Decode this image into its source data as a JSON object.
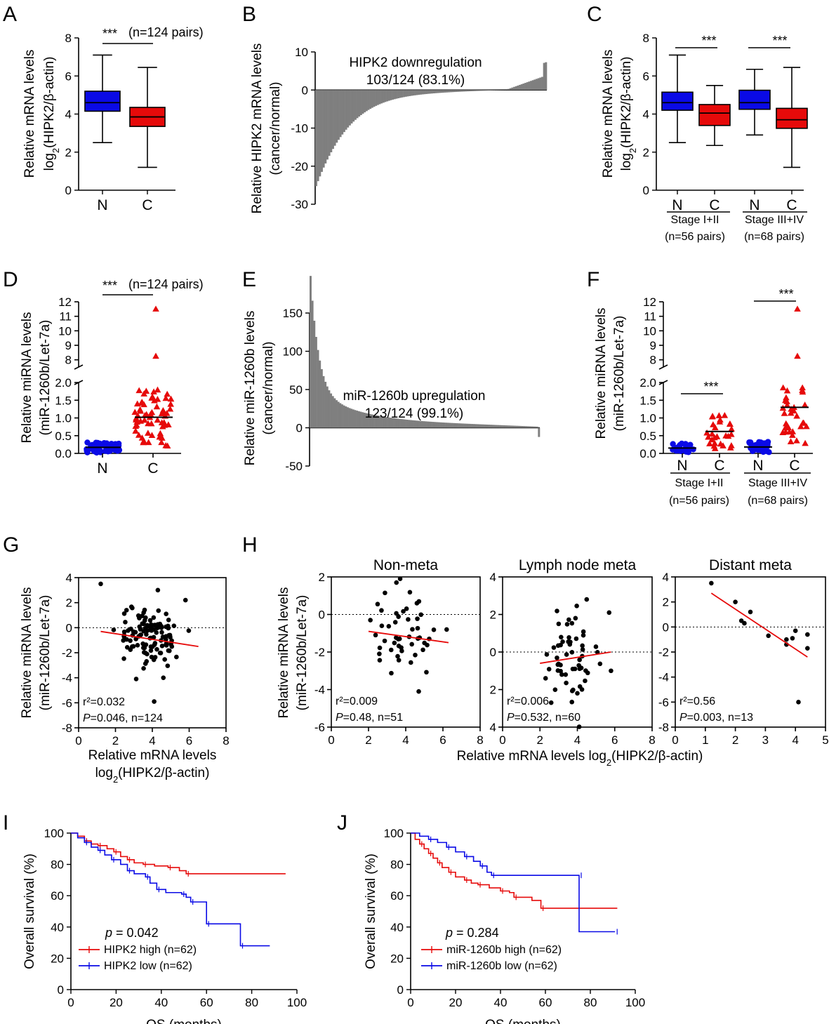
{
  "panels": {
    "A": "A",
    "B": "B",
    "C": "C",
    "D": "D",
    "E": "E",
    "F": "F",
    "G": "G",
    "H": "H",
    "I": "I",
    "J": "J"
  },
  "colors": {
    "blue": "#0a0ae6",
    "red": "#e60a0a",
    "gray": "#7f7f7f",
    "black": "#000000"
  },
  "chart_data": [
    {
      "id": "A",
      "type": "box",
      "ylabel": "Relative mRNA levels",
      "ylabel2_pre": "log",
      "ylabel2_sub": "2",
      "ylabel2_post": "(HIPK2/β-actin)",
      "ylim": [
        0,
        8
      ],
      "yticks": [
        "0",
        "2",
        "4",
        "6",
        "8"
      ],
      "categories": [
        "N",
        "C"
      ],
      "sig": "***",
      "sig_note": "(n=124 pairs)",
      "boxes": [
        {
          "cat": "N",
          "min": 2.5,
          "q1": 4.15,
          "median": 4.6,
          "q3": 5.2,
          "max": 7.1,
          "color": "#0a0ae6"
        },
        {
          "cat": "C",
          "min": 1.2,
          "q1": 3.35,
          "median": 3.85,
          "q3": 4.35,
          "max": 6.45,
          "color": "#e60a0a"
        }
      ]
    },
    {
      "id": "B",
      "type": "bar",
      "ylabel": "Relative HIPK2 mRNA levels",
      "ylabel2": "(cancer/normal)",
      "ylim": [
        -30,
        10
      ],
      "yticks": [
        "10",
        "0",
        "-10",
        "-20",
        "-30"
      ],
      "annotation": "HIPK2 downregulation",
      "annotation2": "103/124 (83.1%)",
      "n": 124,
      "down": 103
    },
    {
      "id": "C",
      "type": "box",
      "ylabel": "Relative mRNA levels",
      "ylabel2_pre": "log",
      "ylabel2_sub": "2",
      "ylabel2_post": "(HIPK2/β-actin)",
      "ylim": [
        0,
        8
      ],
      "yticks": [
        "0",
        "2",
        "4",
        "6",
        "8"
      ],
      "categories": [
        "N",
        "C",
        "N",
        "C"
      ],
      "groups": [
        {
          "label": "Stage I+II",
          "n": "(n=56 pairs)",
          "sig": "***"
        },
        {
          "label": "Stage III+IV",
          "n": "(n=68 pairs)",
          "sig": "***"
        }
      ],
      "boxes": [
        {
          "min": 2.5,
          "q1": 4.2,
          "median": 4.6,
          "q3": 5.15,
          "max": 7.1,
          "color": "#0a0ae6"
        },
        {
          "min": 2.35,
          "q1": 3.4,
          "median": 4.05,
          "q3": 4.5,
          "max": 5.5,
          "color": "#e60a0a"
        },
        {
          "min": 2.9,
          "q1": 4.25,
          "median": 4.6,
          "q3": 5.25,
          "max": 6.35,
          "color": "#0a0ae6"
        },
        {
          "min": 1.2,
          "q1": 3.25,
          "median": 3.7,
          "q3": 4.3,
          "max": 6.45,
          "color": "#e60a0a"
        }
      ]
    },
    {
      "id": "D",
      "type": "scatter-dot",
      "ylabel": "Relative miRNA levels",
      "ylabel2": "(miR-1260b/Let-7a)",
      "ylim_low": [
        0,
        2
      ],
      "ylim_high": [
        7.5,
        12
      ],
      "yticks_low": [
        "0.0",
        "0.5",
        "1.0",
        "1.5",
        "2.0"
      ],
      "yticks_high": [
        "8",
        "9",
        "10",
        "11",
        "12"
      ],
      "categories": [
        "N",
        "C"
      ],
      "sig": "***",
      "sig_note": "(n=124 pairs)",
      "means": [
        0.17,
        1.02
      ]
    },
    {
      "id": "E",
      "type": "bar",
      "ylabel": "Relative miR-1260b levels",
      "ylabel2": "(cancer/normal)",
      "ylim": [
        -50,
        150
      ],
      "yticks": [
        "150",
        "100",
        "50",
        "0",
        "-50"
      ],
      "annotation": "miR-1260b upregulation",
      "annotation2": "123/124 (99.1%)",
      "n": 124,
      "up": 123
    },
    {
      "id": "F",
      "type": "scatter-dot",
      "ylabel": "Relative miRNA levels",
      "ylabel2": "(miR-1260b/Let-7a)",
      "ylim_low": [
        0,
        2
      ],
      "ylim_high": [
        7.5,
        12
      ],
      "yticks_low": [
        "0.0",
        "0.5",
        "1.0",
        "1.5",
        "2.0"
      ],
      "yticks_high": [
        "8",
        "9",
        "10",
        "11",
        "12"
      ],
      "categories": [
        "N",
        "C",
        "N",
        "C"
      ],
      "groups": [
        {
          "label": "Stage I+II",
          "n": "(n=56 pairs)",
          "sig": "***"
        },
        {
          "label": "Stage III+IV",
          "n": "(n=68 pairs)",
          "sig": "***"
        }
      ],
      "means": [
        0.15,
        0.62,
        0.18,
        1.3
      ]
    },
    {
      "id": "G",
      "type": "scatter",
      "xlabel": "Relative mRNA levels",
      "xlabel2_pre": "log",
      "xlabel2_sub": "2",
      "xlabel2_post": "(HIPK2/β-actin)",
      "ylabel": "Relative miRNA levels",
      "ylabel2": "(miR-1260b/Let-7a)",
      "xlim": [
        0,
        8
      ],
      "ylim": [
        -8,
        4
      ],
      "xticks": [
        "0",
        "2",
        "4",
        "6",
        "8"
      ],
      "yticks": [
        "4",
        "2",
        "0",
        "-2",
        "-4",
        "-6",
        "-8"
      ],
      "r2_label": "r²=0.032",
      "p_label": "P",
      "stat": "=0.046, n=124",
      "fit": [
        [
          1.2,
          -0.3
        ],
        [
          6.5,
          -1.5
        ]
      ]
    },
    {
      "id": "H",
      "type": "scatter-multi",
      "ylabel": "Relative miRNA levels",
      "ylabel2": "(miR-1260b/Let-7a)",
      "xlabel_pre": "Relative mRNA levels log",
      "xlabel_sub": "2",
      "xlabel_post": "(HIPK2/β-actin)",
      "subplots": [
        {
          "title": "Non-meta",
          "xlim": [
            0,
            8
          ],
          "ylim": [
            -6,
            2
          ],
          "xticks": [
            "0",
            "2",
            "4",
            "6",
            "8"
          ],
          "yticks": [
            "2",
            "0",
            "-2",
            "-4",
            "-6"
          ],
          "r2_label": "r²=0.009",
          "p_label": "P",
          "stat": "=0.48, n=51",
          "fit": [
            [
              2.0,
              -0.9
            ],
            [
              6.3,
              -1.5
            ]
          ]
        },
        {
          "title": "Lymph node meta",
          "xlim": [
            0,
            8
          ],
          "ylim": [
            -4,
            4
          ],
          "xticks": [
            "0",
            "2",
            "4",
            "6",
            "8"
          ],
          "yticks": [
            "4",
            "2",
            "0",
            "2",
            "4"
          ],
          "r2_label": "r²=0.006",
          "p_label": "P",
          "stat": "=0.532, n=60",
          "fit": [
            [
              2.0,
              -0.6
            ],
            [
              5.8,
              0.0
            ]
          ]
        },
        {
          "title": "Distant meta",
          "xlim": [
            0,
            5
          ],
          "ylim": [
            -8,
            4
          ],
          "xticks": [
            "0",
            "1",
            "2",
            "3",
            "4",
            "5"
          ],
          "yticks": [
            "4",
            "2",
            "0",
            "-2",
            "-4",
            "-6",
            "-8"
          ],
          "r2_label": "r²=0.56",
          "p_label": "P",
          "stat": "=0.003, n=13",
          "fit": [
            [
              1.2,
              2.7
            ],
            [
              4.4,
              -2.4
            ]
          ]
        }
      ]
    },
    {
      "id": "I",
      "type": "km",
      "xlabel": "OS (months)",
      "ylabel": "Overall survival (%)",
      "xlim": [
        0,
        100
      ],
      "ylim": [
        0,
        100
      ],
      "xticks": [
        "0",
        "20",
        "40",
        "60",
        "80",
        "100"
      ],
      "yticks": [
        "0",
        "20",
        "40",
        "60",
        "80",
        "100"
      ],
      "p_label": "p",
      "p_value": " = 0.042",
      "series": [
        {
          "name": "HIPK2 high (n=62)",
          "color": "#e60a0a",
          "steps": [
            [
              0,
              100
            ],
            [
              3,
              98
            ],
            [
              6,
              95
            ],
            [
              9,
              93
            ],
            [
              12,
              92
            ],
            [
              16,
              90
            ],
            [
              19,
              88
            ],
            [
              22,
              85
            ],
            [
              25,
              83
            ],
            [
              28,
              81
            ],
            [
              32,
              80
            ],
            [
              37,
              79
            ],
            [
              43,
              78
            ],
            [
              48,
              76
            ],
            [
              51,
              74
            ],
            [
              95,
              74
            ]
          ]
        },
        {
          "name": "HIPK2 low (n=62)",
          "color": "#0a0ae6",
          "steps": [
            [
              0,
              100
            ],
            [
              3,
              97
            ],
            [
              6,
              94
            ],
            [
              9,
              91
            ],
            [
              12,
              89
            ],
            [
              15,
              86
            ],
            [
              18,
              83
            ],
            [
              22,
              80
            ],
            [
              25,
              76
            ],
            [
              28,
              74
            ],
            [
              33,
              72
            ],
            [
              35,
              68
            ],
            [
              38,
              64
            ],
            [
              42,
              62
            ],
            [
              49,
              61
            ],
            [
              51,
              59
            ],
            [
              53,
              56
            ],
            [
              59,
              56
            ],
            [
              60,
              42
            ],
            [
              73,
              42
            ],
            [
              75,
              28
            ],
            [
              88,
              28
            ]
          ]
        }
      ]
    },
    {
      "id": "J",
      "type": "km",
      "xlabel": "OS (months)",
      "ylabel": "Overall survival (%)",
      "xlim": [
        0,
        100
      ],
      "ylim": [
        0,
        100
      ],
      "xticks": [
        "0",
        "20",
        "40",
        "60",
        "80",
        "100"
      ],
      "yticks": [
        "0",
        "20",
        "40",
        "60",
        "80",
        "100"
      ],
      "p_label": "p",
      "p_value": " = 0.284",
      "series": [
        {
          "name": "miR-1260b high (n=62)",
          "color": "#e60a0a",
          "steps": [
            [
              0,
              100
            ],
            [
              2,
              96
            ],
            [
              4,
              93
            ],
            [
              6,
              90
            ],
            [
              8,
              87
            ],
            [
              10,
              84
            ],
            [
              12,
              81
            ],
            [
              14,
              78
            ],
            [
              17,
              75
            ],
            [
              20,
              72
            ],
            [
              24,
              70
            ],
            [
              27,
              68
            ],
            [
              30,
              67
            ],
            [
              35,
              65
            ],
            [
              40,
              63
            ],
            [
              44,
              62
            ],
            [
              46,
              59
            ],
            [
              54,
              57
            ],
            [
              58,
              52
            ],
            [
              92,
              52
            ]
          ]
        },
        {
          "name": "miR-1260b low (n=62)",
          "color": "#0a0ae6",
          "steps": [
            [
              0,
              100
            ],
            [
              4,
              98
            ],
            [
              8,
              96
            ],
            [
              12,
              94
            ],
            [
              16,
              91
            ],
            [
              20,
              88
            ],
            [
              24,
              85
            ],
            [
              28,
              82
            ],
            [
              31,
              79
            ],
            [
              34,
              75
            ],
            [
              36,
              73
            ],
            [
              50,
              73
            ],
            [
              75,
              73
            ],
            [
              75,
              37
            ],
            [
              91,
              37
            ]
          ]
        }
      ]
    }
  ]
}
